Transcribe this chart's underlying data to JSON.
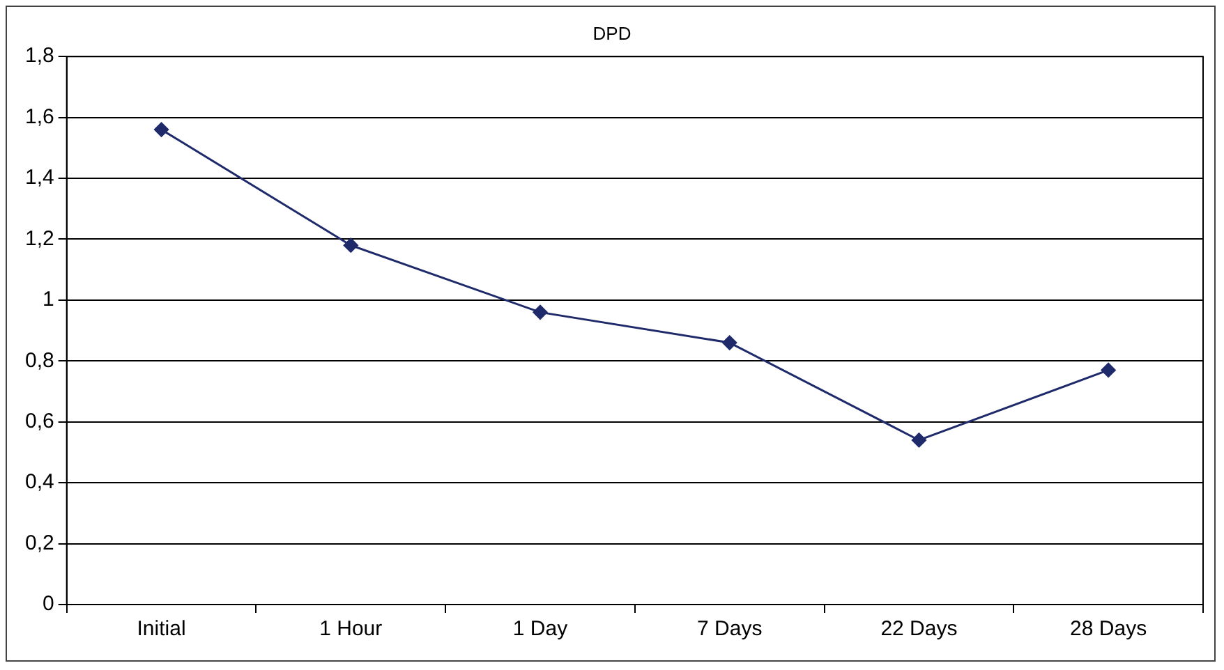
{
  "chart_data": {
    "type": "line",
    "title": "DPD",
    "categories": [
      "Initial",
      "1 Hour",
      "1 Day",
      "7 Days",
      "22 Days",
      "28 Days"
    ],
    "series": [
      {
        "color": "#1f2a6b",
        "values": [
          1.56,
          1.18,
          0.96,
          0.86,
          0.54,
          0.77
        ]
      }
    ],
    "ylim": [
      0,
      1.8
    ],
    "yticks": [
      {
        "value": 0,
        "label": "0"
      },
      {
        "value": 0.2,
        "label": "0,2"
      },
      {
        "value": 0.4,
        "label": "0,4"
      },
      {
        "value": 0.6,
        "label": "0,6"
      },
      {
        "value": 0.8,
        "label": "0,8"
      },
      {
        "value": 1,
        "label": "1"
      },
      {
        "value": 1.2,
        "label": "1,2"
      },
      {
        "value": 1.4,
        "label": "1,4"
      },
      {
        "value": 1.6,
        "label": "1,6"
      },
      {
        "value": 1.8,
        "label": "1,8"
      }
    ],
    "grid": "y",
    "legend": false,
    "marker": "diamond",
    "line_style": "solid"
  }
}
